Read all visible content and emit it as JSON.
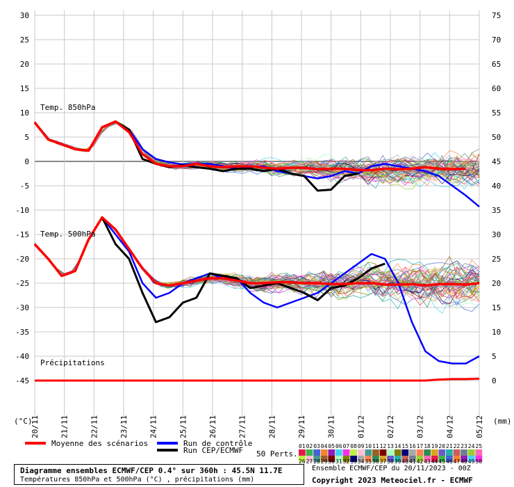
{
  "chart_data": {
    "type": "line",
    "x_labels": [
      "20/11",
      "21/11",
      "22/11",
      "23/11",
      "24/11",
      "25/11",
      "26/11",
      "27/11",
      "28/11",
      "29/11",
      "30/11",
      "01/12",
      "02/12",
      "03/12",
      "04/12",
      "05/12"
    ],
    "left_axis": {
      "unit": "(°C)",
      "ticks": [
        30,
        25,
        20,
        15,
        10,
        5,
        0,
        -5,
        -10,
        -15,
        -20,
        -25,
        -30,
        -35,
        -40,
        -45
      ],
      "range": [
        -45,
        30
      ]
    },
    "right_axis": {
      "unit": "(mm)",
      "ticks": [
        75,
        70,
        65,
        60,
        55,
        50,
        45,
        40,
        35,
        30,
        25,
        20,
        15,
        10,
        5,
        0
      ],
      "range": [
        0,
        75
      ]
    },
    "grid": true,
    "panels": [
      {
        "label": "Temp. 850hPa",
        "mean": [
          8,
          4.5,
          3.5,
          2.5,
          2.2,
          7,
          8.2,
          6,
          1.5,
          -0.5,
          -1,
          -1,
          -0.5,
          -1,
          -1.2,
          -1,
          -1,
          -1.3,
          -1.5,
          -1.3,
          -1.3,
          -1.6,
          -1.5,
          -1.5,
          -1.8,
          -1.8,
          -1.5,
          -1.6,
          -1.5,
          -1.2,
          -1.5,
          -1.6,
          -1.5
        ],
        "control": [
          8,
          4.5,
          3.5,
          2.5,
          2.2,
          7,
          8.2,
          6.5,
          2.5,
          0.5,
          -0.2,
          -0.6,
          -0.5,
          -0.5,
          -1,
          -1.5,
          -1.2,
          -1,
          -2,
          -2.5,
          -3,
          -3.5,
          -3,
          -2,
          -2.5,
          -1,
          -0.5,
          -1,
          -1.5,
          -2,
          -3,
          -5,
          -7,
          -9.3
        ],
        "oper": [
          8,
          4.5,
          3.5,
          2.5,
          2.2,
          7,
          8.2,
          6.5,
          0.5,
          -0.5,
          -1.2,
          -0.8,
          -1.2,
          -1.5,
          -2,
          -1.5,
          -1.5,
          -2,
          -1.5,
          -2.5,
          -3,
          -6,
          -5.8,
          -3,
          -2.5
        ]
      },
      {
        "label": "Temp. 500hPa",
        "mean": [
          -17,
          -20,
          -23.5,
          -22.5,
          -16,
          -11.5,
          -14,
          -18,
          -22,
          -25,
          -25.5,
          -25,
          -24.5,
          -24,
          -24,
          -24.5,
          -25,
          -25,
          -24.8,
          -24.8,
          -25,
          -25,
          -25.2,
          -25.2,
          -25,
          -25,
          -25.3,
          -25.3,
          -25.2,
          -25.5,
          -25.2,
          -25.2,
          -25.3,
          -25
        ],
        "control": [
          -17,
          -20,
          -23.5,
          -22.5,
          -16,
          -11.5,
          -15,
          -18.5,
          -25,
          -28,
          -27,
          -25,
          -24,
          -23,
          -24,
          -24,
          -27,
          -29,
          -30,
          -29,
          -28,
          -27,
          -25,
          -23,
          -21,
          -19,
          -20,
          -25,
          -33,
          -39,
          -41,
          -41.5,
          -41.5,
          -40
        ],
        "oper": [
          -17,
          -20,
          -23.5,
          -22.5,
          -16,
          -11.5,
          -17,
          -20,
          -27,
          -33,
          -32,
          -29,
          -28,
          -23,
          -23.5,
          -24,
          -26,
          -25.5,
          -25,
          -26,
          -27,
          -28.5,
          -26,
          -25.5,
          -24,
          -22,
          -21
        ]
      },
      {
        "label": "Précipitations",
        "mean_mm": [
          0,
          0,
          0,
          0,
          0,
          0,
          0,
          0,
          0,
          0,
          0,
          0,
          0,
          0,
          0,
          0,
          0,
          0,
          0,
          0,
          0,
          0,
          0,
          0,
          0,
          0,
          0,
          0,
          0,
          0,
          0.2,
          0.3,
          0.3,
          0.4
        ]
      }
    ],
    "legend": {
      "mean": "Moyenne des scénarios",
      "control": "Run de contrôle",
      "oper": "Run CEP/ECMWF",
      "perts": "50 Perts.",
      "member_row1": [
        "01",
        "02",
        "03",
        "04",
        "05",
        "06",
        "07",
        "08",
        "09",
        "10",
        "11",
        "12",
        "13",
        "14",
        "15",
        "16",
        "17",
        "18",
        "19",
        "20",
        "21",
        "22",
        "23",
        "24",
        "25"
      ],
      "member_row2": [
        "26",
        "27",
        "28",
        "29",
        "30",
        "31",
        "32",
        "33",
        "34",
        "35",
        "36",
        "37",
        "38",
        "39",
        "40",
        "41",
        "42",
        "43",
        "44",
        "45",
        "46",
        "47",
        "48",
        "49",
        "50"
      ]
    },
    "colors": {
      "mean": "#ff0000",
      "control": "#0000ff",
      "oper": "#000000"
    }
  },
  "footer": {
    "title": "Diagramme ensembles ECMWF/CEP 0.4° sur 360h : 45.5N 11.7E",
    "subtitle": "Températures 850hPa et 500hPa (°C) , précipitations (mm)",
    "run": "Ensemble ECMWF/CEP du 20/11/2023 - 00Z",
    "copyright": "Copyright 2023 Meteociel.fr - ECMWF"
  }
}
